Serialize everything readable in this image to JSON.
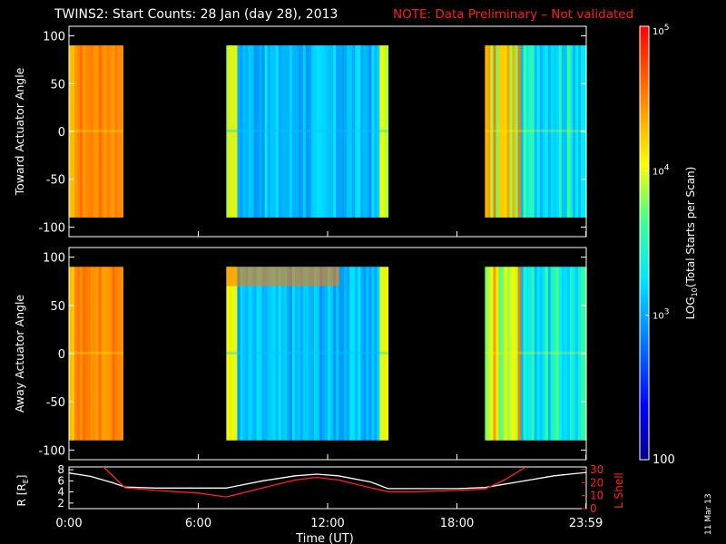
{
  "header": {
    "title": "TWINS2: Start Counts: 28 Jan (day  28), 2013",
    "note": "NOTE: Data Preliminary – Not validated",
    "note_color": "#ff1a1a"
  },
  "side_stamp": "11 Mar 13",
  "colorbar": {
    "label": "LOG10(Total Starts per Scan)",
    "label_base": "LOG",
    "label_sub": "10",
    "label_rest": "(Total Starts per Scan)",
    "scale": "log",
    "range": [
      100,
      100000
    ],
    "ticks": [
      {
        "value": 100000,
        "base": "10",
        "exp": "5"
      },
      {
        "value": 10000,
        "base": "10",
        "exp": "4"
      },
      {
        "value": 1000,
        "base": "10",
        "exp": "3"
      },
      {
        "value": 100,
        "base": "100",
        "exp": ""
      }
    ]
  },
  "chart_data": [
    {
      "type": "heatmap",
      "ylabel": "Toward Actuator Angle",
      "xlim": [
        0,
        24
      ],
      "ylim": [
        -110,
        110
      ],
      "yticks": [
        100,
        50,
        0,
        -50,
        -100
      ],
      "data_angle_range": [
        -90,
        90
      ],
      "scan_blocks": [
        {
          "start": 0.0,
          "end": 2.5,
          "level": "high"
        },
        {
          "start": 7.3,
          "end": 14.8,
          "level": "low"
        },
        {
          "start": 19.3,
          "end": 24.0,
          "level": "mixed"
        }
      ]
    },
    {
      "type": "heatmap",
      "ylabel": "Away Actuator Angle",
      "xlim": [
        0,
        24
      ],
      "ylim": [
        -110,
        110
      ],
      "yticks": [
        100,
        50,
        0,
        -50,
        -100
      ],
      "data_angle_range": [
        -90,
        90
      ],
      "scan_blocks": [
        {
          "start": 0.0,
          "end": 2.5,
          "level": "high"
        },
        {
          "start": 7.3,
          "end": 14.8,
          "level": "low"
        },
        {
          "start": 19.3,
          "end": 24.0,
          "level": "mixed"
        }
      ]
    },
    {
      "type": "line",
      "xlabel": "Time (UT)",
      "ylabel_left": "R [R",
      "ylabel_left_sub": "E",
      "ylabel_left_close": "]",
      "ylabel_right": "L Shell",
      "xticks": [
        {
          "value": 0,
          "label": "0:00"
        },
        {
          "value": 6,
          "label": "6:00"
        },
        {
          "value": 12,
          "label": "12:00"
        },
        {
          "value": 18,
          "label": "18:00"
        },
        {
          "value": 23.983,
          "label": "23:59"
        }
      ],
      "ylim_left": [
        1,
        8.5
      ],
      "yticks_left": [
        8,
        6,
        4,
        2
      ],
      "ylim_right": [
        0,
        32
      ],
      "yticks_right": [
        30,
        20,
        10,
        0
      ],
      "series": [
        {
          "axis": "left",
          "color": "#ffffff",
          "x": [
            0,
            1,
            2,
            2.6,
            4,
            6,
            7.3,
            9,
            10.5,
            11.5,
            12.5,
            14,
            14.8,
            16,
            18,
            19.3,
            21,
            22.5,
            24
          ],
          "y": [
            7.4,
            6.8,
            5.7,
            4.9,
            4.7,
            4.7,
            4.7,
            6.0,
            6.9,
            7.2,
            6.9,
            5.8,
            4.6,
            4.6,
            4.6,
            4.8,
            5.9,
            6.9,
            7.5
          ]
        },
        {
          "axis": "right",
          "color": "#ff2020",
          "x": [
            1.6,
            2.6,
            4,
            6,
            7.3,
            9,
            10.5,
            11.5,
            12.5,
            14,
            14.8,
            16,
            18,
            19.3,
            20.2,
            21.2
          ],
          "y": [
            32,
            16,
            14,
            12,
            9,
            16,
            22,
            24,
            22,
            16,
            13,
            13,
            14,
            15,
            22,
            32
          ]
        }
      ]
    }
  ]
}
